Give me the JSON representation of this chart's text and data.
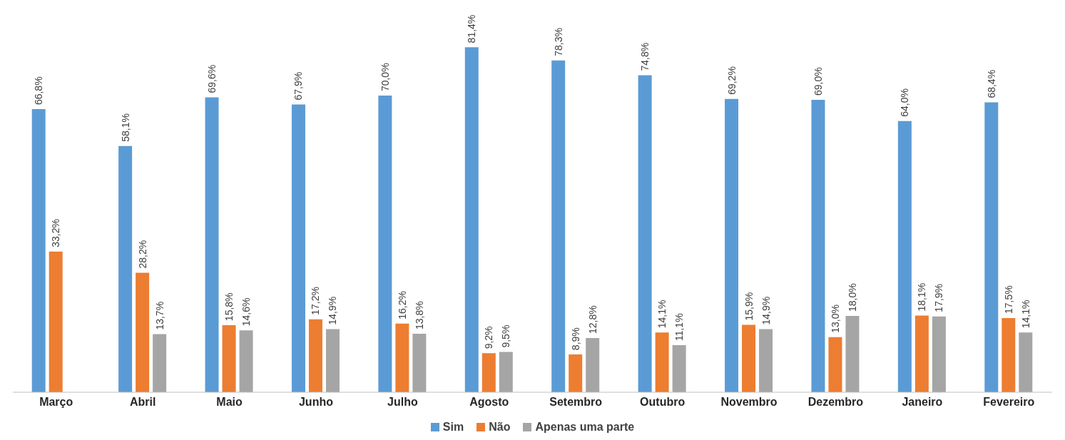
{
  "chart_data": {
    "type": "bar",
    "categories": [
      "Março",
      "Abril",
      "Maio",
      "Junho",
      "Julho",
      "Agosto",
      "Setembro",
      "Outubro",
      "Novembro",
      "Dezembro",
      "Janeiro",
      "Fevereiro"
    ],
    "series": [
      {
        "name": "Sim",
        "color": "#5b9bd5",
        "values": [
          66.8,
          58.1,
          69.6,
          67.9,
          70.0,
          81.4,
          78.3,
          74.8,
          69.2,
          69.0,
          64.0,
          68.4
        ],
        "value_labels": [
          "66,8%",
          "58,1%",
          "69,6%",
          "67,9%",
          "70,0%",
          "81,4%",
          "78,3%",
          "74,8%",
          "69,2%",
          "69,0%",
          "64,0%",
          "68,4%"
        ]
      },
      {
        "name": "Não",
        "color": "#ed7d31",
        "values": [
          33.2,
          28.2,
          15.8,
          17.2,
          16.2,
          9.2,
          8.9,
          14.1,
          15.9,
          13.0,
          18.1,
          17.5
        ],
        "value_labels": [
          "33,2%",
          "28,2%",
          "15,8%",
          "17,2%",
          "16,2%",
          "9,2%",
          "8,9%",
          "14,1%",
          "15,9%",
          "13,0%",
          "18,1%",
          "17,5%"
        ]
      },
      {
        "name": "Apenas uma parte",
        "color": "#a5a5a5",
        "values": [
          null,
          13.7,
          14.6,
          14.9,
          13.8,
          9.5,
          12.8,
          11.1,
          14.9,
          18.0,
          17.9,
          14.1
        ],
        "value_labels": [
          null,
          "13,7%",
          "14,6%",
          "14,9%",
          "13,8%",
          "9,5%",
          "12,8%",
          "11,1%",
          "14,9%",
          "18,0%",
          "17,9%",
          "14,1%"
        ]
      }
    ],
    "grid": false,
    "legend": "bottom"
  }
}
